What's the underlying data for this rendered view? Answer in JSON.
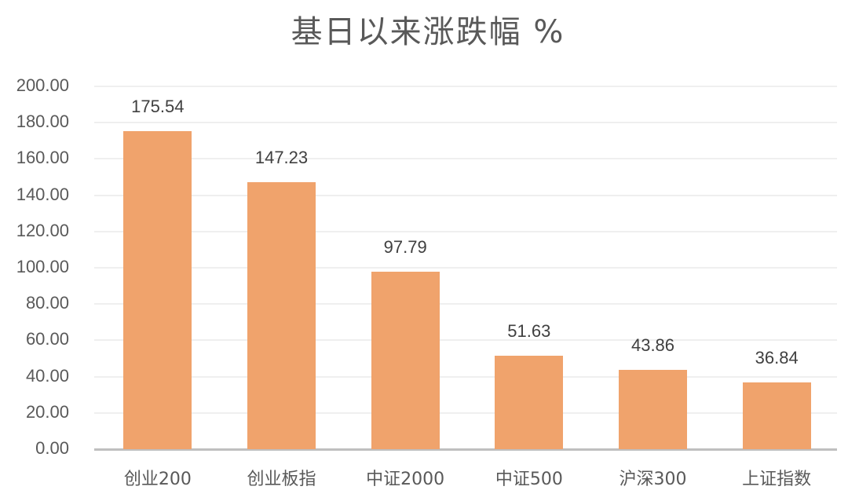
{
  "chart_data": {
    "type": "bar",
    "title": "基日以来涨跌幅 %",
    "xlabel": "",
    "ylabel": "",
    "ylim": [
      0,
      200
    ],
    "yticks": [
      "0.00",
      "20.00",
      "40.00",
      "60.00",
      "80.00",
      "100.00",
      "120.00",
      "140.00",
      "160.00",
      "180.00",
      "200.00"
    ],
    "grid": true,
    "legend": null,
    "categories": [
      "创业200",
      "创业板指",
      "中证2000",
      "中证500",
      "沪深300",
      "上证指数"
    ],
    "values": [
      175.54,
      147.23,
      97.79,
      51.63,
      43.86,
      36.84
    ],
    "data_labels": [
      "175.54",
      "147.23",
      "97.79",
      "51.63",
      "43.86",
      "36.84"
    ],
    "bar_color": "#f0a36c"
  }
}
